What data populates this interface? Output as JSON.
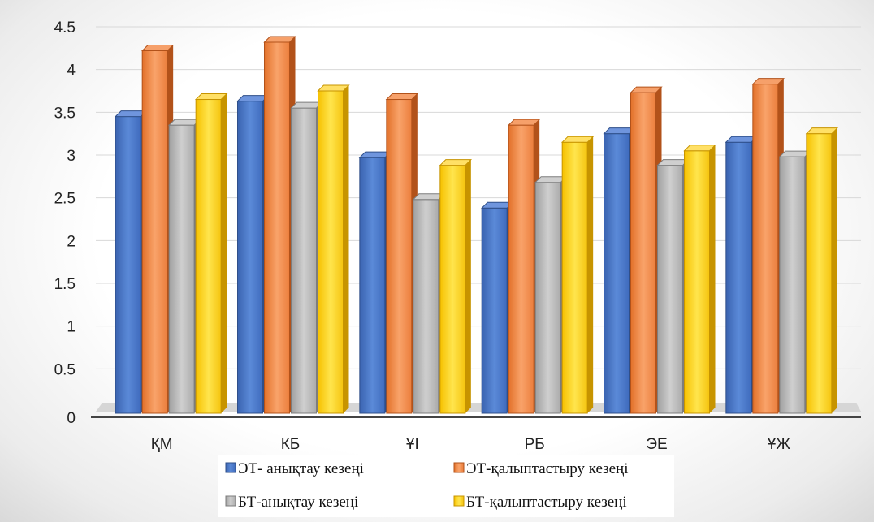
{
  "chart_data": {
    "type": "bar",
    "title": "",
    "xlabel": "",
    "ylabel": "",
    "categories": [
      "ҚМ",
      "КБ",
      "ҰІ",
      "РБ",
      "ЭЕ",
      "ҰЖ"
    ],
    "ylim": [
      0,
      4.5
    ],
    "yticks": [
      "0",
      "0.5",
      "1",
      "1.5",
      "2",
      "2.5",
      "3",
      "3.5",
      "4",
      "4.5"
    ],
    "grid": true,
    "legend_position": "bottom",
    "series": [
      {
        "name": "ЭТ- анықтау кезеңі",
        "color": "#4472c4",
        "values": [
          3.45,
          3.63,
          2.97,
          2.38,
          3.25,
          3.15
        ]
      },
      {
        "name": "ЭТ-қалыптастыру кезеңі",
        "color": "#ed7d31",
        "values": [
          4.22,
          4.32,
          3.65,
          3.35,
          3.73,
          3.83
        ]
      },
      {
        "name": "БТ-анықтау кезеңі",
        "color": "#a5a5a5",
        "values": [
          3.35,
          3.55,
          2.48,
          2.68,
          2.88,
          2.98
        ]
      },
      {
        "name": "БТ-қалыптастыру кезеңі",
        "color": "#ffc000",
        "values": [
          3.65,
          3.75,
          2.88,
          3.15,
          3.05,
          3.25
        ]
      }
    ]
  }
}
